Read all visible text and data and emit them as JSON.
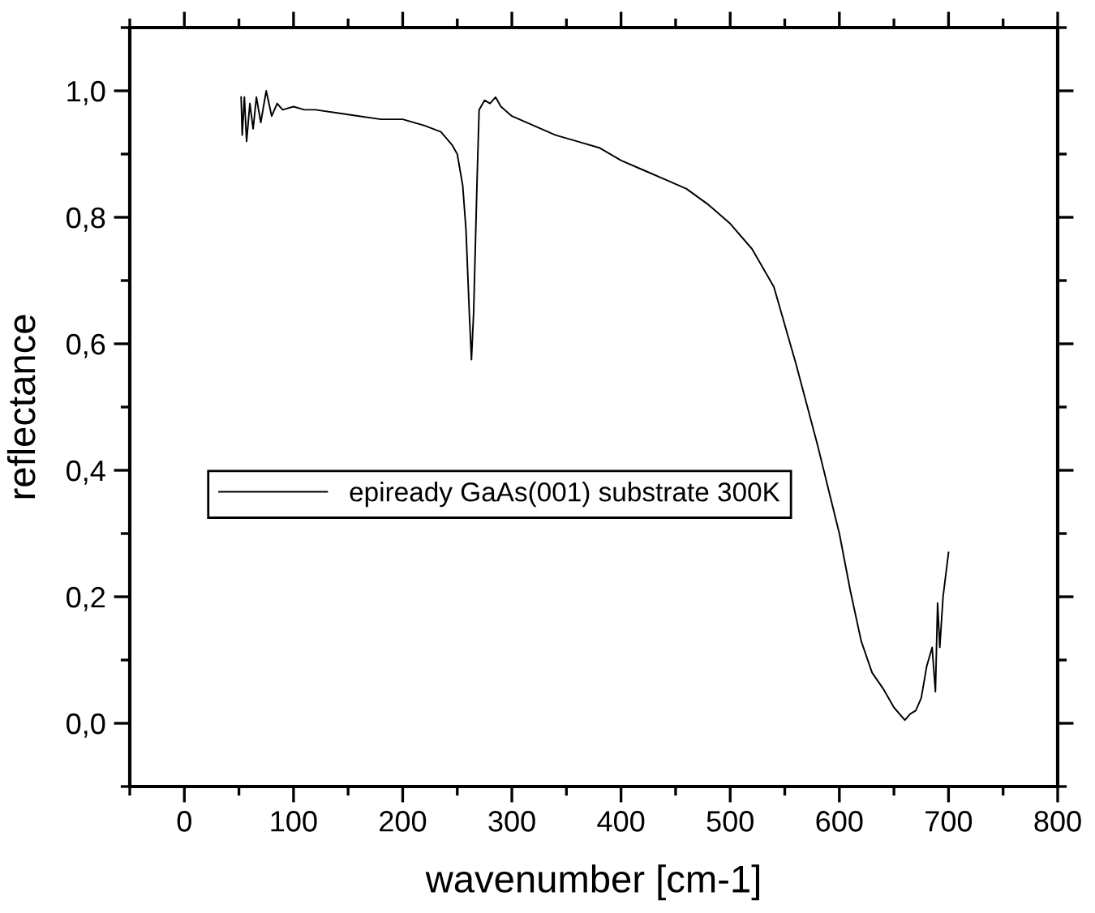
{
  "chart_data": {
    "type": "line",
    "xlabel": "wavenumber [cm-1]",
    "ylabel": "reflectance",
    "legend": "left",
    "grid": false,
    "xlim": [
      -50,
      800
    ],
    "xticks": [
      0,
      100,
      200,
      300,
      400,
      500,
      600,
      700,
      800
    ],
    "ylim": [
      -0.1,
      1.1
    ],
    "yticks": [
      {
        "value": 0,
        "label": "0,0"
      },
      {
        "value": 0.2,
        "label": "0,2"
      },
      {
        "value": 0.4,
        "label": "0,4"
      },
      {
        "value": 0.6,
        "label": "0,6"
      },
      {
        "value": 0.8,
        "label": "0,8"
      },
      {
        "value": 1.0,
        "label": "1,0"
      }
    ],
    "series": [
      {
        "name": "epiready GaAs(001) substrate 300K",
        "color": "#000000",
        "x": [
          52,
          53,
          55,
          57,
          60,
          63,
          66,
          70,
          75,
          80,
          85,
          90,
          100,
          110,
          120,
          140,
          160,
          180,
          200,
          220,
          235,
          245,
          250,
          255,
          258,
          261,
          263,
          265,
          268,
          270,
          275,
          280,
          285,
          290,
          300,
          320,
          340,
          360,
          380,
          400,
          420,
          440,
          460,
          480,
          500,
          520,
          540,
          560,
          580,
          590,
          600,
          610,
          620,
          630,
          640,
          650,
          660,
          665,
          670,
          675,
          680,
          685,
          688,
          690,
          692,
          695,
          700
        ],
        "values": [
          0.99,
          0.93,
          0.99,
          0.92,
          0.98,
          0.94,
          0.99,
          0.95,
          1.0,
          0.96,
          0.98,
          0.97,
          0.975,
          0.97,
          0.97,
          0.965,
          0.96,
          0.955,
          0.955,
          0.945,
          0.935,
          0.915,
          0.9,
          0.85,
          0.78,
          0.65,
          0.575,
          0.65,
          0.85,
          0.97,
          0.985,
          0.98,
          0.99,
          0.975,
          0.96,
          0.945,
          0.93,
          0.92,
          0.91,
          0.89,
          0.875,
          0.86,
          0.845,
          0.82,
          0.79,
          0.75,
          0.69,
          0.57,
          0.44,
          0.37,
          0.3,
          0.21,
          0.13,
          0.08,
          0.055,
          0.025,
          0.005,
          0.015,
          0.02,
          0.04,
          0.09,
          0.12,
          0.05,
          0.19,
          0.12,
          0.2,
          0.27
        ]
      }
    ]
  }
}
